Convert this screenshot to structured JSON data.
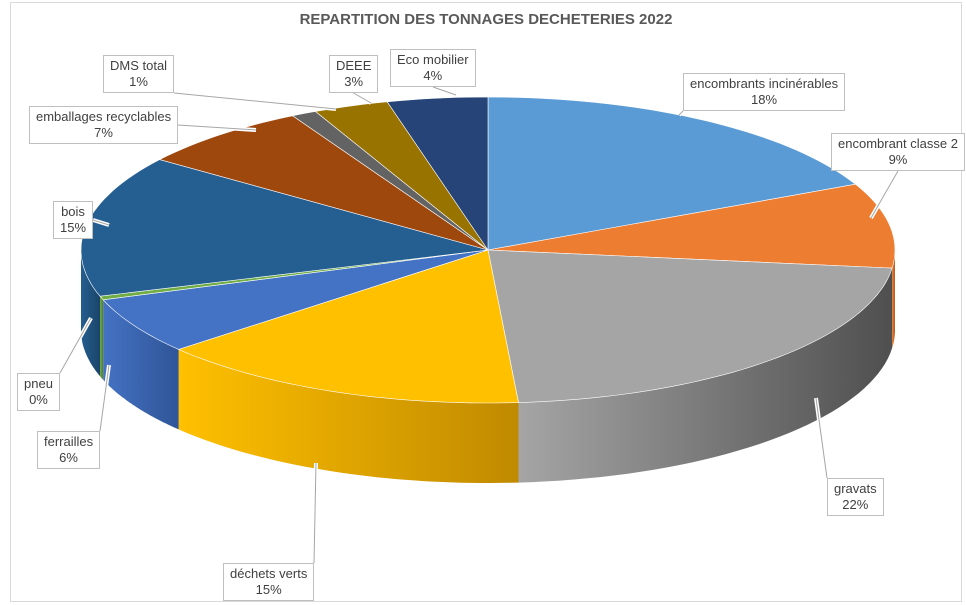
{
  "chart_data": {
    "type": "pie",
    "title": "REPARTITION DES TONNAGES DECHETERIES 2022",
    "slices": [
      {
        "name": "encombrants incinérables",
        "label_pct": "18%",
        "value": 18,
        "color": "#5b9bd5",
        "side": "#3e72a2"
      },
      {
        "name": "encombrant classe 2",
        "label_pct": "9%",
        "value": 9,
        "color": "#ed7d31",
        "side": "#b35a1f"
      },
      {
        "name": "gravats",
        "label_pct": "22%",
        "value": 22,
        "color": "#a5a5a5",
        "side": "#4f4f4f"
      },
      {
        "name": "déchets verts",
        "label_pct": "15%",
        "value": 15,
        "color": "#ffc000",
        "side": "#c08a00"
      },
      {
        "name": "ferrailles",
        "label_pct": "6%",
        "value": 6,
        "color": "#4472c4",
        "side": "#2f5597"
      },
      {
        "name": "pneu",
        "label_pct": "0%",
        "value": 0.4,
        "color": "#70ad47",
        "side": "#4e7a31"
      },
      {
        "name": "bois",
        "label_pct": "15%",
        "value": 15,
        "color": "#255e91",
        "side": "#1a4468"
      },
      {
        "name": "emballages recyclables",
        "label_pct": "7%",
        "value": 7,
        "color": "#9e480e",
        "side": "#6e320a"
      },
      {
        "name": "DMS total",
        "label_pct": "1%",
        "value": 1,
        "color": "#636363",
        "side": "#3f3f3f"
      },
      {
        "name": "DEEE",
        "label_pct": "3%",
        "value": 3,
        "color": "#997300",
        "side": "#6b5100"
      },
      {
        "name": "Eco mobilier",
        "label_pct": "4%",
        "value": 4,
        "color": "#264478",
        "side": "#172b4d"
      }
    ]
  }
}
